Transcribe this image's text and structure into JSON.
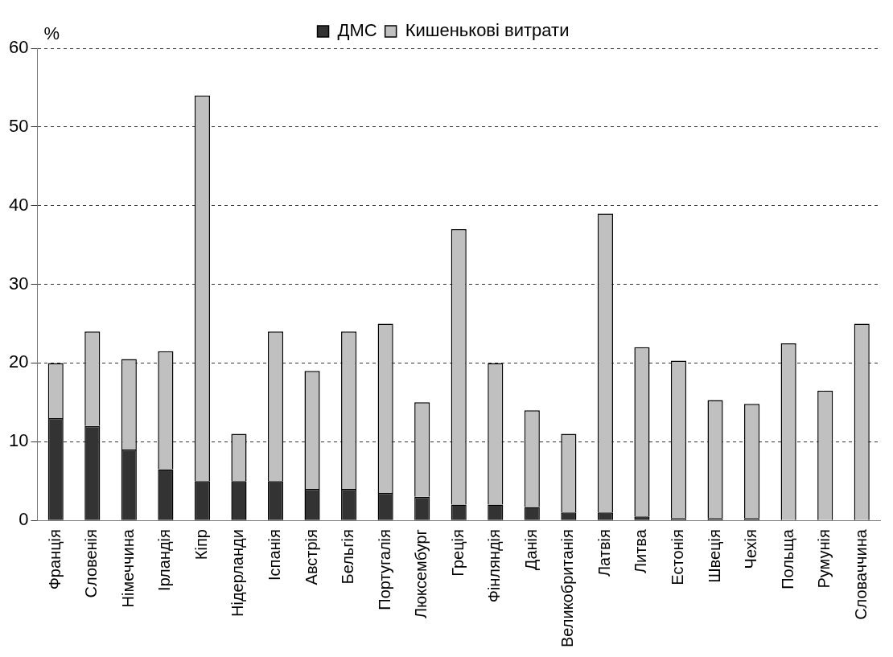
{
  "chart_data": {
    "type": "bar",
    "stacked": true,
    "ylabel": "%",
    "categories": [
      "Франція",
      "Словенія",
      "Німеччина",
      "Ірландія",
      "Кіпр",
      "Нідерланди",
      "Іспанія",
      "Австрія",
      "Бельгія",
      "Португалія",
      "Люксембург",
      "Греція",
      "Фінляндія",
      "Данія",
      "Великобританія",
      "Латвія",
      "Литва",
      "Естонія",
      "Швеція",
      "Чехія",
      "Польща",
      "Румунія",
      "Словаччина"
    ],
    "series": [
      {
        "name": "ДМС",
        "color": "#333333",
        "values": [
          13,
          12,
          9,
          6.5,
          5,
          5,
          5,
          4,
          4,
          3.5,
          3,
          2,
          2,
          1.7,
          1,
          1,
          0.5,
          0.3,
          0.3,
          0.3,
          0,
          0,
          0
        ]
      },
      {
        "name": "Кишенькові витрати",
        "color": "#c0c0c0",
        "values": [
          7,
          12,
          11.5,
          15,
          49,
          6,
          19,
          15,
          20,
          21.5,
          12,
          35,
          18,
          12.3,
          10,
          38,
          21.5,
          20,
          15,
          14.5,
          22.5,
          16.5,
          25
        ]
      }
    ],
    "ylim": [
      0,
      60
    ],
    "yticks": [
      0,
      10,
      20,
      30,
      40,
      50,
      60
    ],
    "grid": "y",
    "legend": "top"
  }
}
